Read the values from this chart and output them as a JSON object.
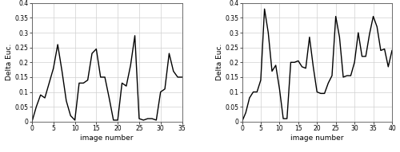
{
  "plot1": {
    "x": [
      0,
      1,
      2,
      3,
      4,
      5,
      6,
      7,
      8,
      9,
      10,
      11,
      12,
      13,
      14,
      15,
      16,
      17,
      18,
      19,
      20,
      21,
      22,
      23,
      24,
      25,
      26,
      27,
      28,
      29,
      30,
      31,
      32,
      33,
      34,
      35
    ],
    "y": [
      0.0,
      0.05,
      0.09,
      0.08,
      0.13,
      0.18,
      0.26,
      0.17,
      0.07,
      0.02,
      0.005,
      0.13,
      0.13,
      0.14,
      0.23,
      0.245,
      0.15,
      0.15,
      0.08,
      0.005,
      0.005,
      0.13,
      0.12,
      0.19,
      0.29,
      0.01,
      0.005,
      0.01,
      0.01,
      0.005,
      0.1,
      0.11,
      0.23,
      0.17,
      0.15,
      0.15
    ],
    "xlabel": "image number",
    "ylabel": "Delta Euc.",
    "xlim": [
      0,
      35
    ],
    "ylim": [
      0,
      0.4
    ],
    "xticks": [
      0,
      5,
      10,
      15,
      20,
      25,
      30,
      35
    ],
    "yticks": [
      0,
      0.05,
      0.1,
      0.15,
      0.2,
      0.25,
      0.3,
      0.35,
      0.4
    ],
    "yticklabels": [
      "0",
      "0.05",
      "0.1",
      "0.15",
      "0.2",
      "0.25",
      "0.3",
      "0.35",
      "0.4"
    ]
  },
  "plot2": {
    "x": [
      0,
      1,
      2,
      3,
      4,
      5,
      6,
      7,
      8,
      9,
      10,
      11,
      12,
      13,
      14,
      15,
      16,
      17,
      18,
      19,
      20,
      21,
      22,
      23,
      24,
      25,
      26,
      27,
      28,
      29,
      30,
      31,
      32,
      33,
      34,
      35,
      36,
      37,
      38,
      39,
      40
    ],
    "y": [
      0.0,
      0.03,
      0.08,
      0.1,
      0.1,
      0.14,
      0.38,
      0.3,
      0.17,
      0.19,
      0.11,
      0.01,
      0.01,
      0.2,
      0.2,
      0.205,
      0.185,
      0.18,
      0.285,
      0.185,
      0.1,
      0.095,
      0.095,
      0.13,
      0.155,
      0.355,
      0.285,
      0.15,
      0.155,
      0.155,
      0.2,
      0.3,
      0.22,
      0.22,
      0.295,
      0.355,
      0.32,
      0.24,
      0.245,
      0.185,
      0.24
    ],
    "xlabel": "image number",
    "ylabel": "Delta Euc.",
    "xlim": [
      0,
      40
    ],
    "ylim": [
      0,
      0.4
    ],
    "xticks": [
      0,
      5,
      10,
      15,
      20,
      25,
      30,
      35,
      40
    ],
    "yticks": [
      0,
      0.05,
      0.1,
      0.15,
      0.2,
      0.25,
      0.3,
      0.35,
      0.4
    ],
    "yticklabels": [
      "0",
      "0.05",
      "0.1",
      "0.15",
      "0.2",
      "0.25",
      "0.3",
      "0.35",
      "0.4"
    ]
  },
  "line_color": "#000000",
  "line_width": 1.0,
  "grid_color": "#d0d0d0",
  "bg_color": "#ffffff",
  "tick_fontsize": 5.5,
  "label_fontsize": 6.5,
  "font_family": "DejaVu Sans"
}
